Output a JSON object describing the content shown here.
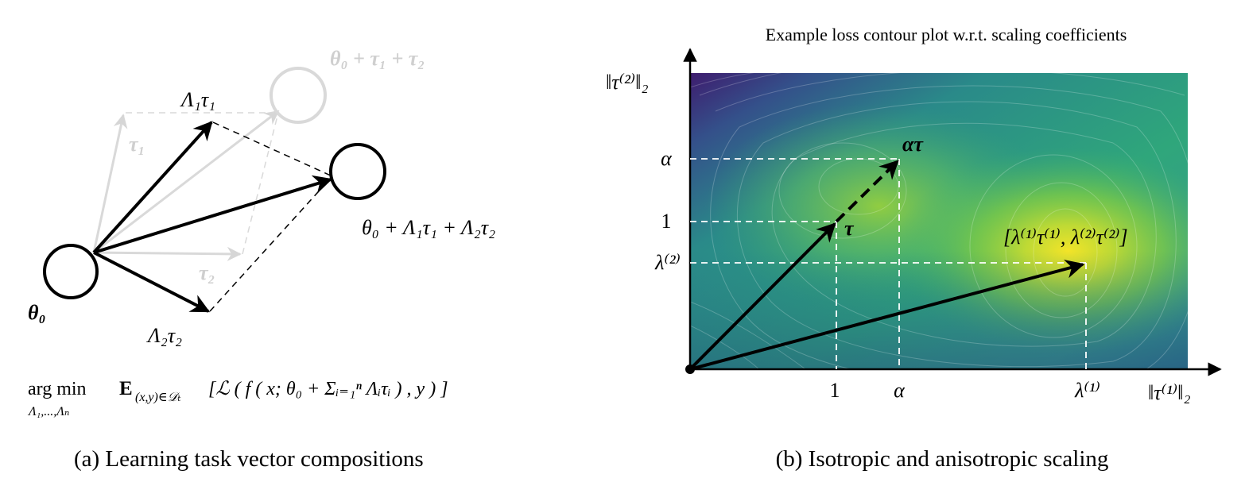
{
  "panel_a": {
    "labels": {
      "theta0": "θ₀",
      "tau1_faded": "τ₁",
      "tau2_faded": "τ₂",
      "lambda1_tau1": "Λ₁τ₁",
      "lambda2_tau2": "Λ₂τ₂",
      "faded_sum": "θ₀ + τ₁ + τ₂",
      "result": "θ₀ + Λ₁τ₁ + Λ₂τ₂"
    },
    "objective": {
      "argmin": "arg min",
      "argmin_sub": "Λ₁,...,Λₙ",
      "expectation": "E",
      "expectation_sub": "(x,y)∈𝒟ₜ",
      "body": "[ℒ ( f ( x; θ₀ + Σᵢ₌₁ⁿ Λᵢτᵢ ) , y ) ]"
    },
    "caption": "(a) Learning task vector compositions"
  },
  "panel_b": {
    "title": "Example loss contour plot w.r.t. scaling coefficients",
    "y_axis_label": "‖τ⁽²⁾‖₂",
    "x_axis_label": "‖τ⁽¹⁾‖₂",
    "y_ticks": [
      "α",
      "1",
      "λ⁽²⁾"
    ],
    "x_ticks": [
      "1",
      "α",
      "λ⁽¹⁾"
    ],
    "annotations": {
      "tau": "τ",
      "alpha_tau": "ατ",
      "aniso": "[λ⁽¹⁾τ⁽¹⁾, λ⁽²⁾τ⁽²⁾]"
    },
    "caption": "(b) Isotropic and anisotropic scaling"
  }
}
